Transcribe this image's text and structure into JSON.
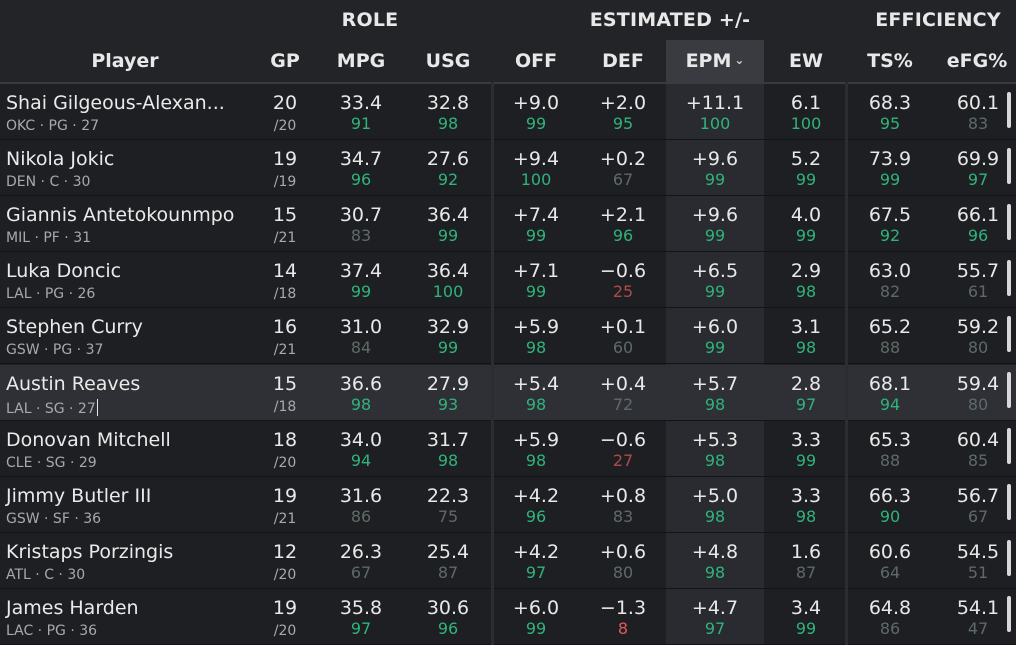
{
  "header": {
    "groups": {
      "role": "ROLE",
      "estimated": "ESTIMATED +/-",
      "efficiency": "EFFICIENCY"
    },
    "columns": {
      "player": "Player",
      "gp": "GP",
      "mpg": "MPG",
      "usg": "USG",
      "off": "OFF",
      "def": "DEF",
      "epm": "EPM",
      "ew": "EW",
      "ts": "TS%",
      "efg": "eFG%"
    },
    "sort_icon": "chevron-down-icon",
    "sorted_column": "EPM"
  },
  "colors": {
    "high_pct": "#2fb37a",
    "mid_pct": "#5e6a65",
    "low_pct": "#b04a4a",
    "background": "#1e1f23"
  },
  "rows": [
    {
      "name": "Shai Gilgeous-Alexan...",
      "sub": "OKC · PG · 27",
      "gp": "20",
      "gp_total": "/20",
      "mpg": "33.4",
      "mpg_p": "91",
      "usg": "32.8",
      "usg_p": "98",
      "off": "+9.0",
      "off_p": "99",
      "def": "+2.0",
      "def_p": "95",
      "epm": "+11.1",
      "epm_p": "100",
      "ew": "6.1",
      "ew_p": "100",
      "ts": "68.3",
      "ts_p": "95",
      "efg": "60.1",
      "efg_p": "83"
    },
    {
      "name": "Nikola Jokic",
      "sub": "DEN · C · 30",
      "gp": "19",
      "gp_total": "/19",
      "mpg": "34.7",
      "mpg_p": "96",
      "usg": "27.6",
      "usg_p": "92",
      "off": "+9.4",
      "off_p": "100",
      "def": "+0.2",
      "def_p": "67",
      "epm": "+9.6",
      "epm_p": "99",
      "ew": "5.2",
      "ew_p": "99",
      "ts": "73.9",
      "ts_p": "99",
      "efg": "69.9",
      "efg_p": "97"
    },
    {
      "name": "Giannis Antetokounmpo",
      "sub": "MIL · PF · 31",
      "gp": "15",
      "gp_total": "/21",
      "mpg": "30.7",
      "mpg_p": "83",
      "usg": "36.4",
      "usg_p": "99",
      "off": "+7.4",
      "off_p": "99",
      "def": "+2.1",
      "def_p": "96",
      "epm": "+9.6",
      "epm_p": "99",
      "ew": "4.0",
      "ew_p": "99",
      "ts": "67.5",
      "ts_p": "92",
      "efg": "66.1",
      "efg_p": "96"
    },
    {
      "name": "Luka Doncic",
      "sub": "LAL · PG · 26",
      "gp": "14",
      "gp_total": "/18",
      "mpg": "37.4",
      "mpg_p": "99",
      "usg": "36.4",
      "usg_p": "100",
      "off": "+7.1",
      "off_p": "99",
      "def": "−0.6",
      "def_p": "25",
      "epm": "+6.5",
      "epm_p": "99",
      "ew": "2.9",
      "ew_p": "98",
      "ts": "63.0",
      "ts_p": "82",
      "efg": "55.7",
      "efg_p": "61"
    },
    {
      "name": "Stephen Curry",
      "sub": "GSW · PG · 37",
      "gp": "16",
      "gp_total": "/21",
      "mpg": "31.0",
      "mpg_p": "84",
      "usg": "32.9",
      "usg_p": "99",
      "off": "+5.9",
      "off_p": "98",
      "def": "+0.1",
      "def_p": "60",
      "epm": "+6.0",
      "epm_p": "99",
      "ew": "3.1",
      "ew_p": "98",
      "ts": "65.2",
      "ts_p": "88",
      "efg": "59.2",
      "efg_p": "80"
    },
    {
      "name": "Austin Reaves",
      "sub": "LAL · SG · 27",
      "gp": "15",
      "gp_total": "/18",
      "mpg": "36.6",
      "mpg_p": "98",
      "usg": "27.9",
      "usg_p": "93",
      "off": "+5.4",
      "off_p": "98",
      "def": "+0.4",
      "def_p": "72",
      "epm": "+5.7",
      "epm_p": "98",
      "ew": "2.8",
      "ew_p": "97",
      "ts": "68.1",
      "ts_p": "94",
      "efg": "59.4",
      "efg_p": "80"
    },
    {
      "name": "Donovan Mitchell",
      "sub": "CLE · SG · 29",
      "gp": "18",
      "gp_total": "/20",
      "mpg": "34.0",
      "mpg_p": "94",
      "usg": "31.7",
      "usg_p": "98",
      "off": "+5.9",
      "off_p": "98",
      "def": "−0.6",
      "def_p": "27",
      "epm": "+5.3",
      "epm_p": "98",
      "ew": "3.3",
      "ew_p": "99",
      "ts": "65.3",
      "ts_p": "88",
      "efg": "60.4",
      "efg_p": "85"
    },
    {
      "name": "Jimmy Butler III",
      "sub": "GSW · SF · 36",
      "gp": "19",
      "gp_total": "/21",
      "mpg": "31.6",
      "mpg_p": "86",
      "usg": "22.3",
      "usg_p": "75",
      "off": "+4.2",
      "off_p": "96",
      "def": "+0.8",
      "def_p": "83",
      "epm": "+5.0",
      "epm_p": "98",
      "ew": "3.3",
      "ew_p": "98",
      "ts": "66.3",
      "ts_p": "90",
      "efg": "56.7",
      "efg_p": "67"
    },
    {
      "name": "Kristaps Porzingis",
      "sub": "ATL · C · 30",
      "gp": "12",
      "gp_total": "/20",
      "mpg": "26.3",
      "mpg_p": "67",
      "usg": "25.4",
      "usg_p": "87",
      "off": "+4.2",
      "off_p": "97",
      "def": "+0.6",
      "def_p": "80",
      "epm": "+4.8",
      "epm_p": "98",
      "ew": "1.6",
      "ew_p": "87",
      "ts": "60.6",
      "ts_p": "64",
      "efg": "54.5",
      "efg_p": "51"
    },
    {
      "name": "James Harden",
      "sub": "LAC · PG · 36",
      "gp": "19",
      "gp_total": "/20",
      "mpg": "35.8",
      "mpg_p": "97",
      "usg": "30.6",
      "usg_p": "96",
      "off": "+6.0",
      "off_p": "99",
      "def": "−1.3",
      "def_p": "8",
      "epm": "+4.7",
      "epm_p": "97",
      "ew": "3.4",
      "ew_p": "99",
      "ts": "64.8",
      "ts_p": "86",
      "efg": "54.1",
      "efg_p": "47"
    }
  ]
}
